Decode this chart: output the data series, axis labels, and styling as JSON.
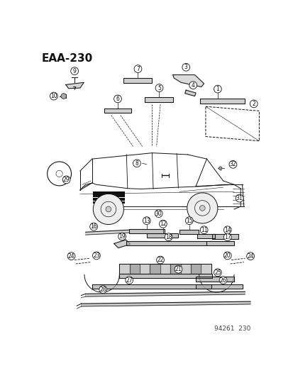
{
  "title": "EAA-230",
  "footer": "94261  230",
  "bg_color": "#ffffff",
  "title_fontsize": 11,
  "footer_fontsize": 6.5,
  "fig_width": 4.14,
  "fig_height": 5.33
}
